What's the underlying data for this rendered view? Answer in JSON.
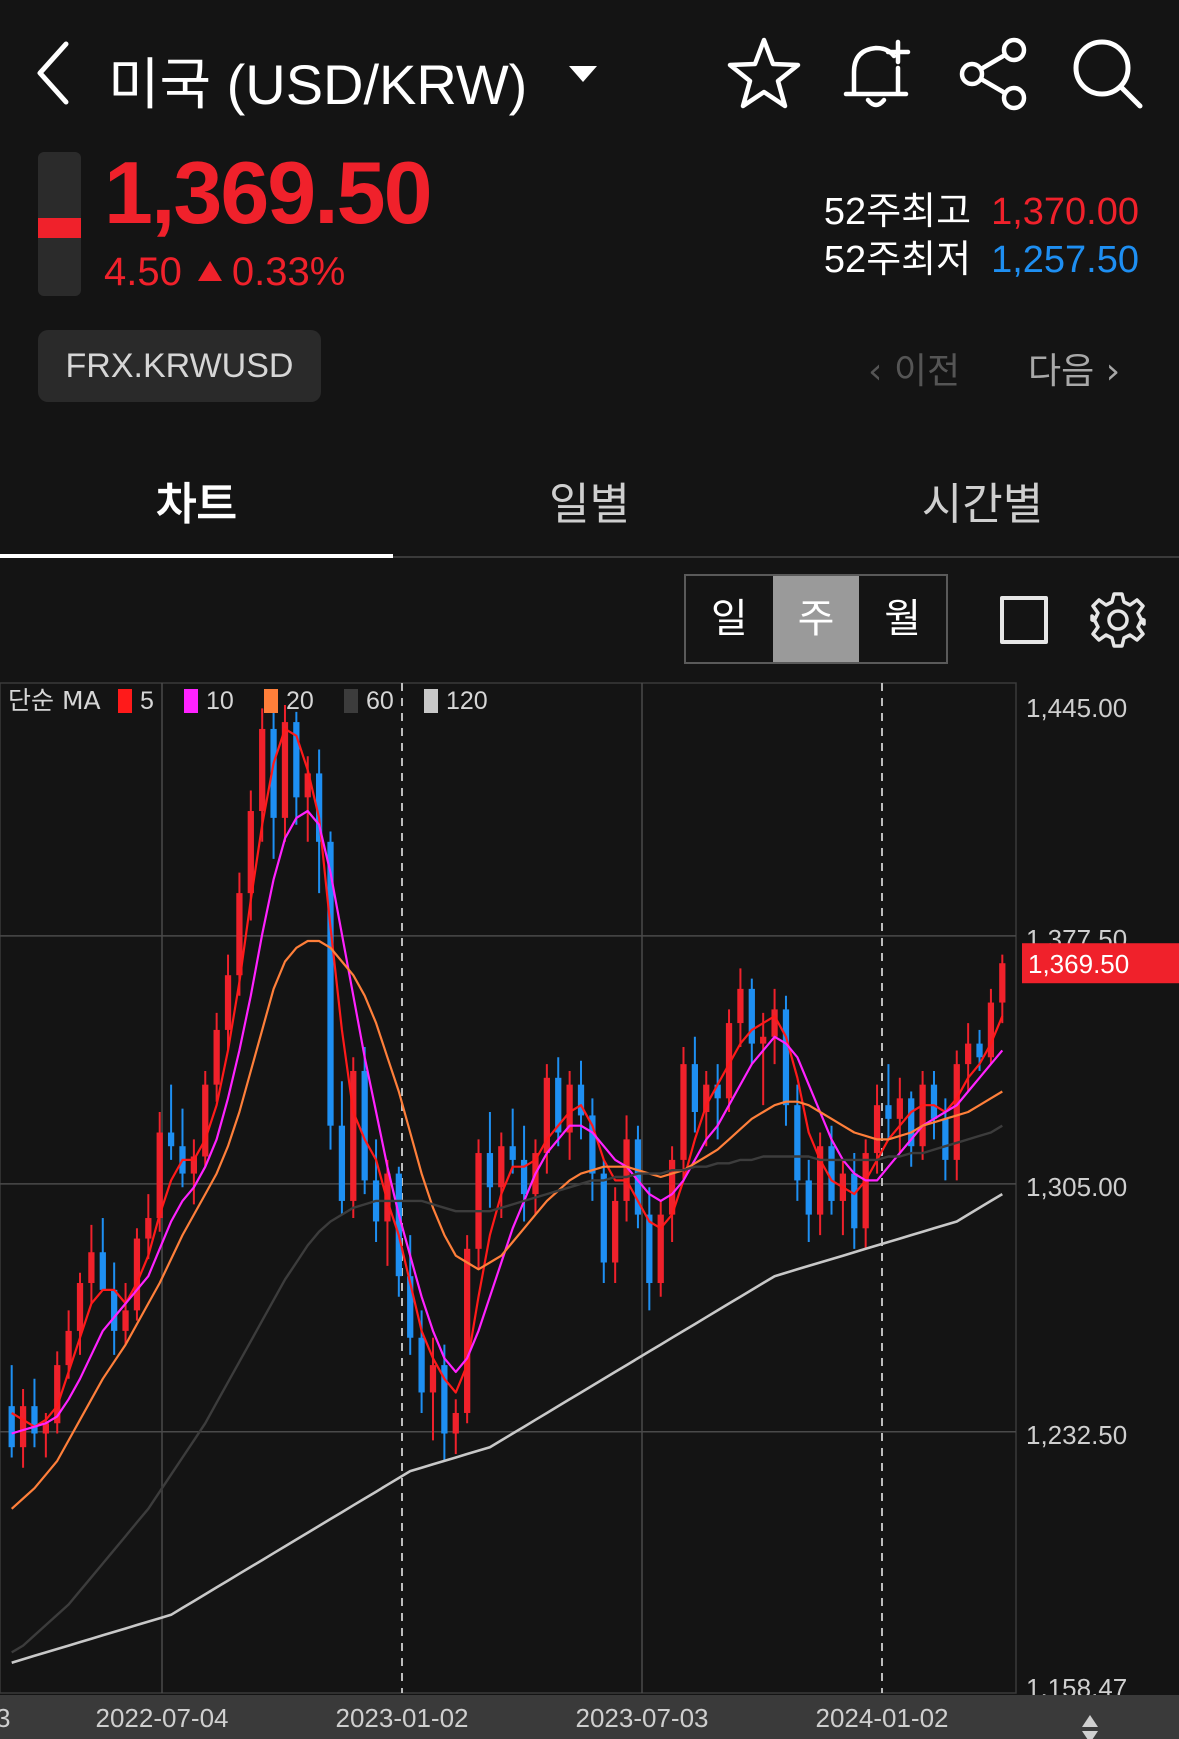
{
  "header": {
    "title": "미국 (USD/KRW)",
    "icons": [
      "back-icon",
      "dropdown-caret-icon",
      "star-icon",
      "bell-plus-icon",
      "share-icon",
      "search-icon"
    ]
  },
  "quote": {
    "price": "1,369.50",
    "change": "4.50",
    "change_pct": "0.33%",
    "high_label": "52주최고",
    "high_value": "1,370.00",
    "low_label": "52주최저",
    "low_value": "1,257.50",
    "code": "FRX.KRWUSD"
  },
  "nav": {
    "prev": "이전",
    "next": "다음"
  },
  "tabs": [
    "차트",
    "일별",
    "시간별"
  ],
  "period": {
    "options": [
      "일",
      "주",
      "월"
    ],
    "selected": "주"
  },
  "colors": {
    "up": "#f0212b",
    "down": "#1e8ff2",
    "ma5": "#ff1a1a",
    "ma10": "#ff22ff",
    "ma20": "#ff7f3a",
    "ma60": "#3c3c3c",
    "ma120": "#c8c8c8"
  },
  "chart_data": {
    "type": "candlestick",
    "legend": {
      "prefix": "단순 MA",
      "entries": [
        "5",
        "10",
        "20",
        "60",
        "120"
      ]
    },
    "y_ticks": [
      "1,445.00",
      "1,377.50",
      "1,305.00",
      "1,232.50",
      "1,158.47"
    ],
    "y_tick_values": [
      1445.0,
      1377.5,
      1305.0,
      1232.5,
      1158.47
    ],
    "ylim": [
      1158.47,
      1445.0
    ],
    "x_ticks": [
      "2022-07-04",
      "2023-01-02",
      "2023-07-03",
      "2024-01-02"
    ],
    "x_tick_partial": "3",
    "current_price_label": "1,369.50",
    "current_price": 1369.5,
    "candles_ohlc": [
      [
        1240,
        1252,
        1225,
        1228
      ],
      [
        1228,
        1245,
        1222,
        1240
      ],
      [
        1240,
        1248,
        1228,
        1232
      ],
      [
        1232,
        1238,
        1225,
        1235
      ],
      [
        1235,
        1256,
        1232,
        1252
      ],
      [
        1252,
        1268,
        1248,
        1262
      ],
      [
        1262,
        1279,
        1255,
        1276
      ],
      [
        1276,
        1293,
        1270,
        1285
      ],
      [
        1285,
        1295,
        1278,
        1274
      ],
      [
        1274,
        1282,
        1255,
        1262
      ],
      [
        1262,
        1276,
        1258,
        1268
      ],
      [
        1268,
        1292,
        1265,
        1289
      ],
      [
        1289,
        1302,
        1283,
        1295
      ],
      [
        1295,
        1326,
        1291,
        1320
      ],
      [
        1320,
        1334,
        1312,
        1316
      ],
      [
        1316,
        1327,
        1304,
        1308
      ],
      [
        1308,
        1318,
        1299,
        1313
      ],
      [
        1313,
        1338,
        1310,
        1334
      ],
      [
        1334,
        1355,
        1329,
        1350
      ],
      [
        1350,
        1372,
        1344,
        1366
      ],
      [
        1366,
        1396,
        1360,
        1390
      ],
      [
        1390,
        1420,
        1382,
        1414
      ],
      [
        1414,
        1444,
        1405,
        1438
      ],
      [
        1438,
        1445,
        1400,
        1412
      ],
      [
        1412,
        1445,
        1405,
        1440
      ],
      [
        1440,
        1443,
        1410,
        1418
      ],
      [
        1418,
        1430,
        1405,
        1425
      ],
      [
        1425,
        1432,
        1390,
        1405
      ],
      [
        1405,
        1408,
        1315,
        1322
      ],
      [
        1322,
        1335,
        1296,
        1300
      ],
      [
        1300,
        1342,
        1295,
        1338
      ],
      [
        1338,
        1345,
        1302,
        1306
      ],
      [
        1306,
        1318,
        1288,
        1294
      ],
      [
        1294,
        1312,
        1281,
        1308
      ],
      [
        1308,
        1310,
        1272,
        1278
      ],
      [
        1278,
        1290,
        1255,
        1260
      ],
      [
        1260,
        1268,
        1238,
        1244
      ],
      [
        1244,
        1260,
        1230,
        1252
      ],
      [
        1252,
        1258,
        1224,
        1232
      ],
      [
        1232,
        1242,
        1226,
        1238
      ],
      [
        1238,
        1290,
        1235,
        1286
      ],
      [
        1286,
        1318,
        1280,
        1314
      ],
      [
        1314,
        1326,
        1298,
        1304
      ],
      [
        1304,
        1320,
        1295,
        1316
      ],
      [
        1316,
        1327,
        1308,
        1312
      ],
      [
        1312,
        1322,
        1294,
        1302
      ],
      [
        1302,
        1318,
        1296,
        1314
      ],
      [
        1314,
        1340,
        1308,
        1336
      ],
      [
        1336,
        1342,
        1316,
        1320
      ],
      [
        1320,
        1338,
        1312,
        1334
      ],
      [
        1334,
        1341,
        1318,
        1325
      ],
      [
        1325,
        1330,
        1300,
        1308
      ],
      [
        1308,
        1312,
        1276,
        1282
      ],
      [
        1282,
        1304,
        1276,
        1300
      ],
      [
        1300,
        1325,
        1294,
        1318
      ],
      [
        1318,
        1322,
        1292,
        1296
      ],
      [
        1296,
        1304,
        1268,
        1276
      ],
      [
        1276,
        1300,
        1272,
        1296
      ],
      [
        1296,
        1316,
        1288,
        1312
      ],
      [
        1312,
        1345,
        1306,
        1340
      ],
      [
        1340,
        1348,
        1320,
        1326
      ],
      [
        1326,
        1338,
        1316,
        1334
      ],
      [
        1334,
        1340,
        1318,
        1330
      ],
      [
        1330,
        1356,
        1326,
        1352
      ],
      [
        1352,
        1368,
        1345,
        1362
      ],
      [
        1362,
        1365,
        1340,
        1346
      ],
      [
        1346,
        1355,
        1328,
        1348
      ],
      [
        1348,
        1362,
        1340,
        1356
      ],
      [
        1356,
        1360,
        1322,
        1328
      ],
      [
        1328,
        1334,
        1300,
        1306
      ],
      [
        1306,
        1312,
        1288,
        1296
      ],
      [
        1296,
        1320,
        1290,
        1316
      ],
      [
        1316,
        1322,
        1296,
        1300
      ],
      [
        1300,
        1312,
        1290,
        1308
      ],
      [
        1308,
        1314,
        1286,
        1292
      ],
      [
        1292,
        1318,
        1286,
        1314
      ],
      [
        1314,
        1334,
        1308,
        1328
      ],
      [
        1328,
        1340,
        1318,
        1324
      ],
      [
        1324,
        1336,
        1314,
        1330
      ],
      [
        1330,
        1332,
        1310,
        1316
      ],
      [
        1316,
        1338,
        1312,
        1334
      ],
      [
        1334,
        1338,
        1318,
        1324
      ],
      [
        1324,
        1330,
        1306,
        1312
      ],
      [
        1312,
        1344,
        1306,
        1340
      ],
      [
        1340,
        1352,
        1332,
        1346
      ],
      [
        1346,
        1350,
        1338,
        1342
      ],
      [
        1342,
        1362,
        1340,
        1358
      ],
      [
        1358,
        1372,
        1352,
        1369.5
      ]
    ],
    "series": [
      {
        "name": "5",
        "values": [
          1238,
          1236,
          1234,
          1236,
          1240,
          1250,
          1260,
          1270,
          1274,
          1274,
          1270,
          1276,
          1284,
          1296,
          1306,
          1312,
          1312,
          1318,
          1328,
          1344,
          1364,
          1388,
          1410,
          1428,
          1438,
          1436,
          1426,
          1412,
          1380,
          1350,
          1326,
          1318,
          1312,
          1300,
          1290,
          1276,
          1262,
          1254,
          1248,
          1244,
          1252,
          1272,
          1290,
          1302,
          1310,
          1310,
          1312,
          1318,
          1322,
          1326,
          1328,
          1322,
          1312,
          1306,
          1306,
          1300,
          1294,
          1292,
          1296,
          1306,
          1318,
          1328,
          1334,
          1340,
          1346,
          1350,
          1352,
          1354,
          1348,
          1336,
          1320,
          1312,
          1306,
          1304,
          1302,
          1306,
          1312,
          1318,
          1322,
          1326,
          1328,
          1328,
          1326,
          1330,
          1336,
          1340,
          1346,
          1354
        ]
      },
      {
        "name": "10",
        "values": [
          1232,
          1233,
          1234,
          1235,
          1237,
          1242,
          1248,
          1255,
          1262,
          1266,
          1270,
          1274,
          1278,
          1286,
          1294,
          1300,
          1304,
          1310,
          1318,
          1330,
          1344,
          1360,
          1378,
          1394,
          1406,
          1412,
          1414,
          1410,
          1396,
          1378,
          1360,
          1342,
          1326,
          1310,
          1296,
          1284,
          1272,
          1262,
          1254,
          1250,
          1254,
          1262,
          1272,
          1282,
          1292,
          1300,
          1308,
          1314,
          1318,
          1322,
          1322,
          1320,
          1316,
          1312,
          1310,
          1306,
          1302,
          1300,
          1302,
          1306,
          1312,
          1318,
          1322,
          1328,
          1334,
          1340,
          1344,
          1348,
          1346,
          1342,
          1334,
          1326,
          1318,
          1312,
          1308,
          1306,
          1306,
          1310,
          1314,
          1318,
          1322,
          1324,
          1326,
          1328,
          1332,
          1336,
          1340,
          1344
        ]
      },
      {
        "name": "20",
        "values": [
          1210,
          1213,
          1216,
          1220,
          1224,
          1230,
          1236,
          1242,
          1248,
          1253,
          1258,
          1264,
          1270,
          1276,
          1283,
          1290,
          1296,
          1302,
          1308,
          1316,
          1326,
          1338,
          1350,
          1362,
          1370,
          1374,
          1376,
          1376,
          1374,
          1370,
          1366,
          1360,
          1352,
          1342,
          1332,
          1320,
          1308,
          1298,
          1290,
          1284,
          1282,
          1280,
          1282,
          1284,
          1288,
          1292,
          1296,
          1300,
          1303,
          1306,
          1308,
          1309,
          1310,
          1310,
          1310,
          1309,
          1308,
          1307,
          1308,
          1309,
          1311,
          1313,
          1315,
          1318,
          1321,
          1324,
          1326,
          1328,
          1329,
          1329,
          1328,
          1326,
          1324,
          1322,
          1320,
          1319,
          1318,
          1318,
          1319,
          1320,
          1322,
          1323,
          1324,
          1325,
          1326,
          1328,
          1330,
          1332
        ]
      },
      {
        "name": "60",
        "values": [
          1168,
          1170,
          1173,
          1176,
          1179,
          1182,
          1186,
          1190,
          1194,
          1198,
          1202,
          1206,
          1210,
          1215,
          1220,
          1225,
          1230,
          1235,
          1241,
          1247,
          1253,
          1259,
          1265,
          1271,
          1277,
          1282,
          1287,
          1291,
          1294,
          1296,
          1298,
          1299,
          1300,
          1300,
          1300,
          1300,
          1300,
          1299,
          1298,
          1297,
          1297,
          1297,
          1297,
          1298,
          1299,
          1300,
          1301,
          1302,
          1303,
          1304,
          1305,
          1306,
          1306,
          1307,
          1307,
          1308,
          1308,
          1308,
          1309,
          1309,
          1310,
          1310,
          1311,
          1311,
          1312,
          1312,
          1313,
          1313,
          1313,
          1313,
          1313,
          1312,
          1312,
          1312,
          1312,
          1312,
          1312,
          1313,
          1313,
          1314,
          1314,
          1315,
          1316,
          1317,
          1318,
          1319,
          1320,
          1322
        ]
      },
      {
        "name": "120",
        "values": [
          1165,
          1166,
          1167,
          1168,
          1169,
          1170,
          1171,
          1172,
          1173,
          1174,
          1175,
          1176,
          1177,
          1178,
          1179,
          1181,
          1183,
          1185,
          1187,
          1189,
          1191,
          1193,
          1195,
          1197,
          1199,
          1201,
          1203,
          1205,
          1207,
          1209,
          1211,
          1213,
          1215,
          1217,
          1219,
          1221,
          1222,
          1223,
          1224,
          1225,
          1226,
          1227,
          1228,
          1230,
          1232,
          1234,
          1236,
          1238,
          1240,
          1242,
          1244,
          1246,
          1248,
          1250,
          1252,
          1254,
          1256,
          1258,
          1260,
          1262,
          1264,
          1266,
          1268,
          1270,
          1272,
          1274,
          1276,
          1278,
          1279,
          1280,
          1281,
          1282,
          1283,
          1284,
          1285,
          1286,
          1287,
          1288,
          1289,
          1290,
          1291,
          1292,
          1293,
          1294,
          1296,
          1298,
          1300,
          1302
        ]
      }
    ]
  }
}
